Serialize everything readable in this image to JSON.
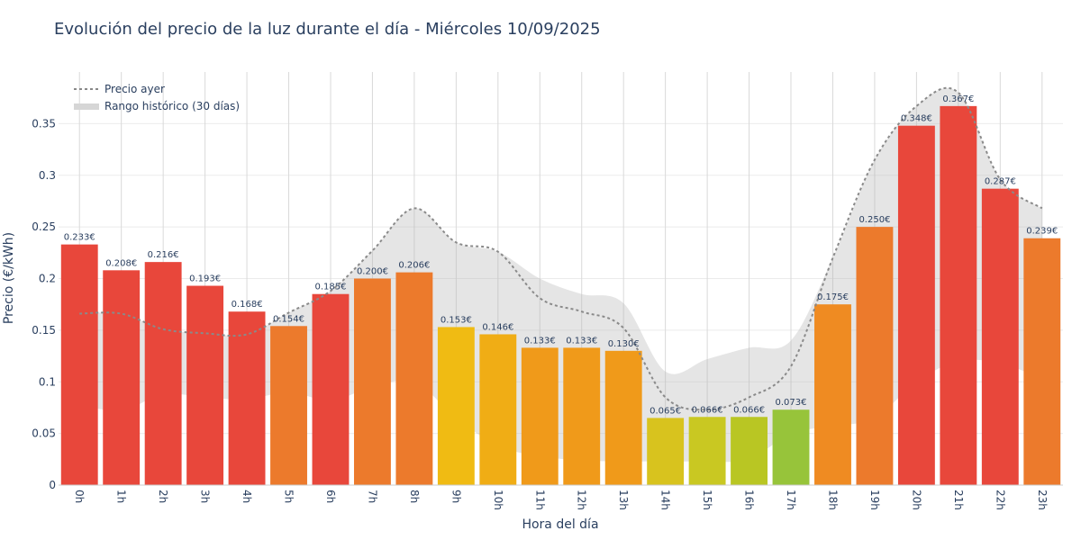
{
  "chart_data": {
    "type": "bar",
    "title": "Evolución del precio de la luz durante el día - Miércoles 10/09/2025",
    "xlabel": "Hora del día",
    "ylabel": "Precio (€/kWh)",
    "ylim": [
      0,
      0.4
    ],
    "yticks": [
      0,
      0.05,
      0.1,
      0.15,
      0.2,
      0.25,
      0.3,
      0.35
    ],
    "ytick_labels": [
      "0",
      "0.05",
      "0.1",
      "0.15",
      "0.2",
      "0.25",
      "0.3",
      "0.35"
    ],
    "categories": [
      "0h",
      "1h",
      "2h",
      "3h",
      "4h",
      "5h",
      "6h",
      "7h",
      "8h",
      "9h",
      "10h",
      "11h",
      "12h",
      "13h",
      "14h",
      "15h",
      "16h",
      "17h",
      "18h",
      "19h",
      "20h",
      "21h",
      "22h",
      "23h"
    ],
    "values": [
      0.233,
      0.208,
      0.216,
      0.193,
      0.168,
      0.154,
      0.185,
      0.2,
      0.206,
      0.153,
      0.146,
      0.133,
      0.133,
      0.13,
      0.065,
      0.066,
      0.066,
      0.073,
      0.175,
      0.25,
      0.348,
      0.367,
      0.287,
      0.239
    ],
    "value_labels": [
      "0.233€",
      "0.208€",
      "0.216€",
      "0.193€",
      "0.168€",
      "0.154€",
      "0.185€",
      "0.200€",
      "0.206€",
      "0.153€",
      "0.146€",
      "0.133€",
      "0.133€",
      "0.130€",
      "0.065€",
      "0.066€",
      "0.066€",
      "0.073€",
      "0.175€",
      "0.250€",
      "0.348€",
      "0.367€",
      "0.287€",
      "0.239€"
    ],
    "bar_colors": [
      "#e8473b",
      "#e8473b",
      "#e8473b",
      "#e8473b",
      "#e8473b",
      "#ec7a2c",
      "#e8473b",
      "#ec7a2c",
      "#ec7a2c",
      "#f0bb13",
      "#f0ad15",
      "#f09a1a",
      "#f09a1a",
      "#f09a1a",
      "#d8c31e",
      "#c9c822",
      "#b9c623",
      "#97c43a",
      "#ef8b22",
      "#ec7a2c",
      "#e8473b",
      "#e8473b",
      "#e8473b",
      "#ec7a2c"
    ],
    "yesterday": {
      "name": "Precio ayer",
      "values": [
        0.166,
        0.166,
        0.151,
        0.147,
        0.146,
        0.167,
        0.188,
        0.227,
        0.268,
        0.235,
        0.226,
        0.181,
        0.168,
        0.152,
        0.085,
        0.073,
        0.085,
        0.115,
        0.22,
        0.315,
        0.367,
        0.38,
        0.296,
        0.268
      ]
    },
    "historical_range": {
      "name": "Rango histórico (30 días)",
      "min": [
        0.078,
        0.072,
        0.088,
        0.085,
        0.083,
        0.09,
        0.082,
        0.095,
        0.1,
        0.065,
        0.038,
        0.028,
        0.024,
        0.023,
        0.023,
        0.023,
        0.025,
        0.05,
        0.057,
        0.065,
        0.1,
        0.12,
        0.118,
        0.103
      ],
      "max": [
        0.166,
        0.166,
        0.151,
        0.147,
        0.146,
        0.167,
        0.188,
        0.227,
        0.268,
        0.235,
        0.226,
        0.2,
        0.185,
        0.176,
        0.11,
        0.122,
        0.133,
        0.14,
        0.22,
        0.315,
        0.367,
        0.38,
        0.296,
        0.268
      ]
    },
    "legend_position": "top-left",
    "grid": true
  }
}
